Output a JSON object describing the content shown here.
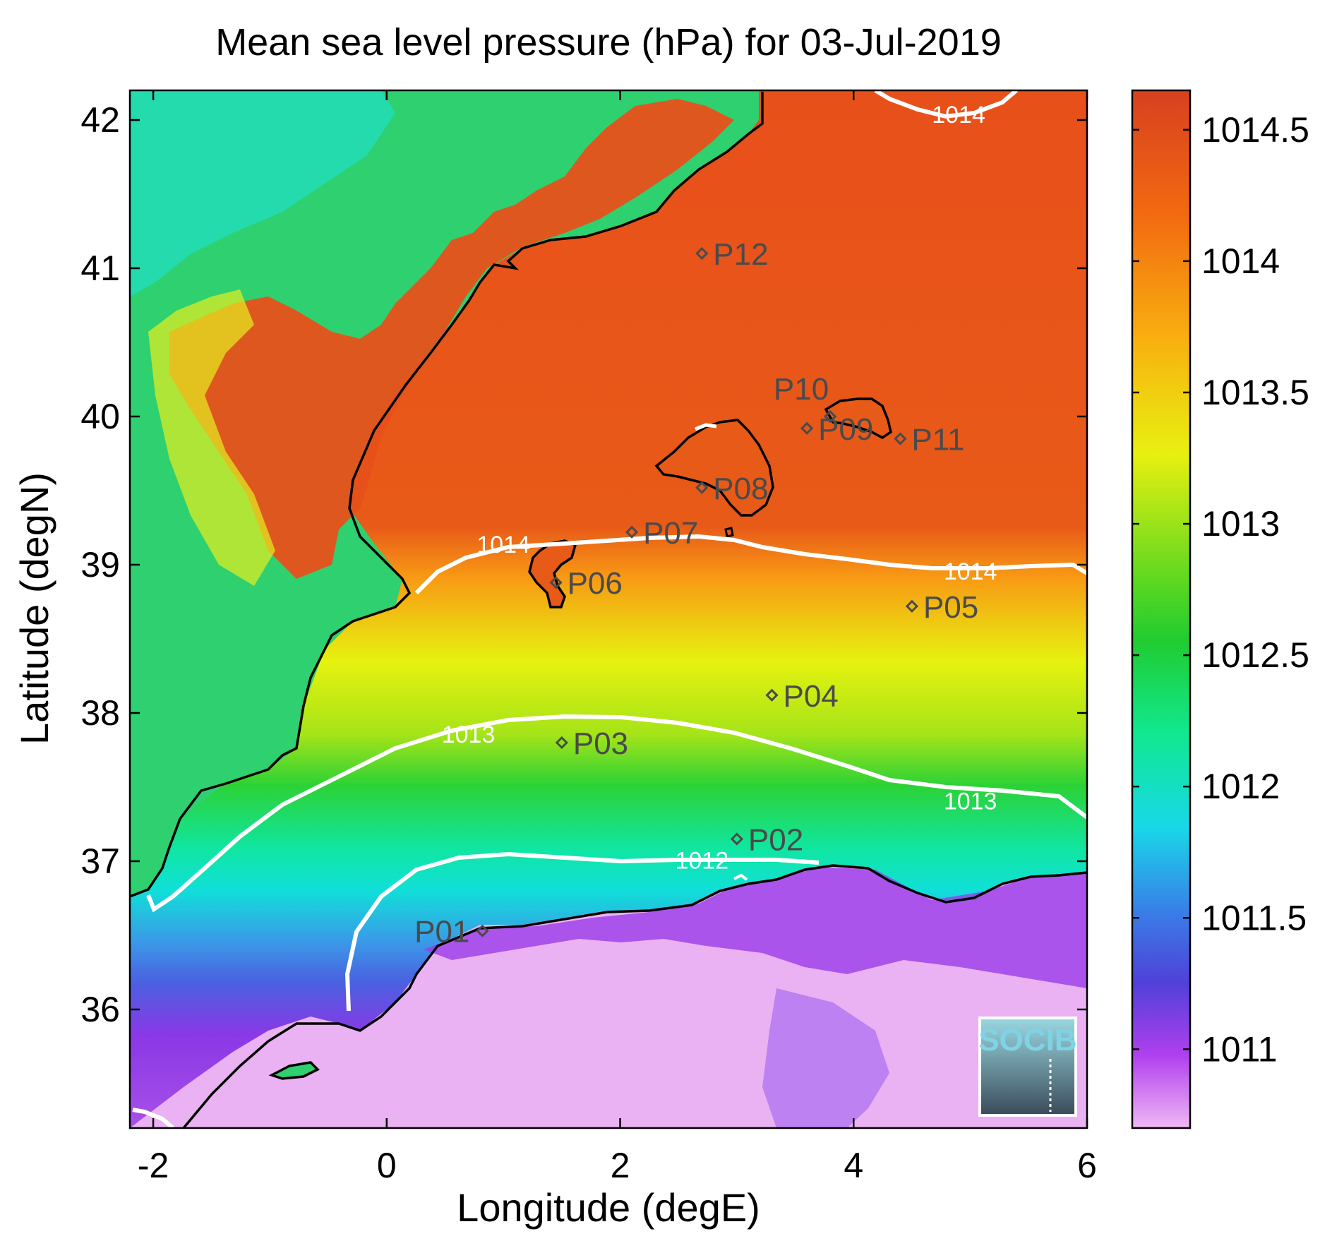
{
  "map": {
    "title": "Mean sea level pressure (hPa) for 03-Jul-2019",
    "xlabel": "Longitude (degE)",
    "ylabel": "Latitude (degN)",
    "xlim": [
      -2.2,
      6.0
    ],
    "ylim": [
      35.2,
      42.2
    ],
    "x_ticks": [
      -2,
      0,
      2,
      4,
      6
    ],
    "y_ticks": [
      36,
      37,
      38,
      39,
      40,
      41,
      42
    ],
    "colorbar": {
      "ticks": [
        "1014.5",
        "1014",
        "1013.5",
        "1013",
        "1012.5",
        "1012",
        "1011.5",
        "1011"
      ],
      "range": [
        1010.7,
        1014.65
      ]
    },
    "colors": {
      "high": "#e8501a",
      "orange": "#f89a14",
      "yellow": "#e6f20f",
      "green": "#2bd235",
      "cyan": "#10e6c6",
      "blue": "#3a78e8",
      "purple": "#8a38e6",
      "pink": "#eab2f2",
      "coast": "#000000",
      "contour": "#ffffff"
    },
    "contours": [
      {
        "label": "1014",
        "lon": 4.9,
        "lat": 41.98
      },
      {
        "label": "1014",
        "lon": 1.0,
        "lat": 39.08
      },
      {
        "label": "1014",
        "lon": 5.0,
        "lat": 38.9
      },
      {
        "label": "1013",
        "lon": 0.7,
        "lat": 37.8
      },
      {
        "label": "1013",
        "lon": 5.0,
        "lat": 37.35
      },
      {
        "label": "1012",
        "lon": 2.7,
        "lat": 36.95
      }
    ],
    "stations": [
      {
        "id": "P01",
        "lon": 0.82,
        "lat": 36.53
      },
      {
        "id": "P02",
        "lon": 3.0,
        "lat": 37.15
      },
      {
        "id": "P03",
        "lon": 1.5,
        "lat": 37.8
      },
      {
        "id": "P04",
        "lon": 3.3,
        "lat": 38.12
      },
      {
        "id": "P05",
        "lon": 4.5,
        "lat": 38.72
      },
      {
        "id": "P06",
        "lon": 1.45,
        "lat": 38.88
      },
      {
        "id": "P07",
        "lon": 2.1,
        "lat": 39.22
      },
      {
        "id": "P08",
        "lon": 2.7,
        "lat": 39.52
      },
      {
        "id": "P09",
        "lon": 3.6,
        "lat": 39.92
      },
      {
        "id": "P10",
        "lon": 3.8,
        "lat": 40.0
      },
      {
        "id": "P11",
        "lon": 4.4,
        "lat": 39.85
      },
      {
        "id": "P12",
        "lon": 2.7,
        "lat": 41.1
      }
    ],
    "logo": {
      "text": "SOCIB"
    }
  }
}
